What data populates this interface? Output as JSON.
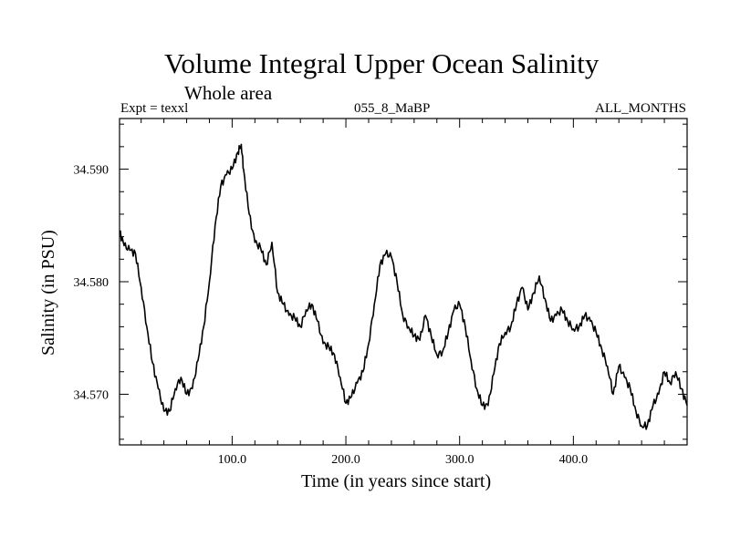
{
  "chart_data": {
    "type": "line",
    "title": "Volume Integral Upper Ocean Salinity",
    "subtitle": "Whole area",
    "annotations": {
      "left": "Expt = texxl",
      "center": "055_8_MaBP",
      "right": "ALL_MONTHS"
    },
    "xlabel": "Time (in years since start)",
    "ylabel": "Salinity (in PSU)",
    "xlim": [
      1,
      500
    ],
    "ylim": [
      34.5655,
      34.5945
    ],
    "xticks": [
      100,
      200,
      300,
      400
    ],
    "xtick_labels": [
      "100.0",
      "200.0",
      "300.0",
      "400.0"
    ],
    "yticks": [
      34.57,
      34.58,
      34.59
    ],
    "ytick_labels": [
      "34.570",
      "34.580",
      "34.590"
    ],
    "series": [
      {
        "name": "salinity",
        "x": [
          1,
          5,
          10,
          15,
          20,
          25,
          30,
          35,
          40,
          45,
          50,
          55,
          60,
          65,
          70,
          75,
          80,
          85,
          90,
          95,
          100,
          105,
          108,
          110,
          115,
          120,
          125,
          130,
          135,
          140,
          145,
          150,
          155,
          160,
          165,
          170,
          175,
          180,
          185,
          190,
          195,
          200,
          205,
          210,
          215,
          220,
          225,
          230,
          235,
          240,
          245,
          250,
          255,
          260,
          265,
          270,
          275,
          280,
          285,
          290,
          295,
          300,
          305,
          310,
          315,
          320,
          325,
          330,
          335,
          340,
          345,
          350,
          355,
          360,
          365,
          370,
          375,
          380,
          385,
          390,
          395,
          400,
          405,
          410,
          415,
          420,
          425,
          430,
          435,
          440,
          445,
          450,
          455,
          460,
          465,
          470,
          475,
          480,
          485,
          490,
          495,
          500
        ],
        "y": [
          34.5845,
          34.5832,
          34.5828,
          34.5825,
          34.5795,
          34.576,
          34.5728,
          34.5705,
          34.5685,
          34.5685,
          34.5705,
          34.5715,
          34.57,
          34.5705,
          34.573,
          34.576,
          34.58,
          34.585,
          34.5885,
          34.5895,
          34.59,
          34.5915,
          34.5922,
          34.59,
          34.586,
          34.5835,
          34.583,
          34.5815,
          34.5835,
          34.579,
          34.578,
          34.577,
          34.5768,
          34.576,
          34.5775,
          34.578,
          34.5765,
          34.5745,
          34.5742,
          34.5735,
          34.5715,
          34.5692,
          34.5698,
          34.571,
          34.572,
          34.5745,
          34.578,
          34.5815,
          34.5825,
          34.5822,
          34.58,
          34.577,
          34.576,
          34.5752,
          34.5748,
          34.577,
          34.5752,
          34.5735,
          34.5738,
          34.5755,
          34.5775,
          34.578,
          34.576,
          34.573,
          34.5705,
          34.569,
          34.569,
          34.5718,
          34.5745,
          34.5755,
          34.576,
          34.578,
          34.5795,
          34.5775,
          34.579,
          34.5805,
          34.5785,
          34.5765,
          34.577,
          34.5775,
          34.5765,
          34.5758,
          34.576,
          34.577,
          34.5765,
          34.5755,
          34.574,
          34.5725,
          34.57,
          34.5725,
          34.5715,
          34.5705,
          34.5685,
          34.5672,
          34.5672,
          34.569,
          34.57,
          34.572,
          34.571,
          34.572,
          34.5705,
          34.569
        ]
      }
    ]
  }
}
